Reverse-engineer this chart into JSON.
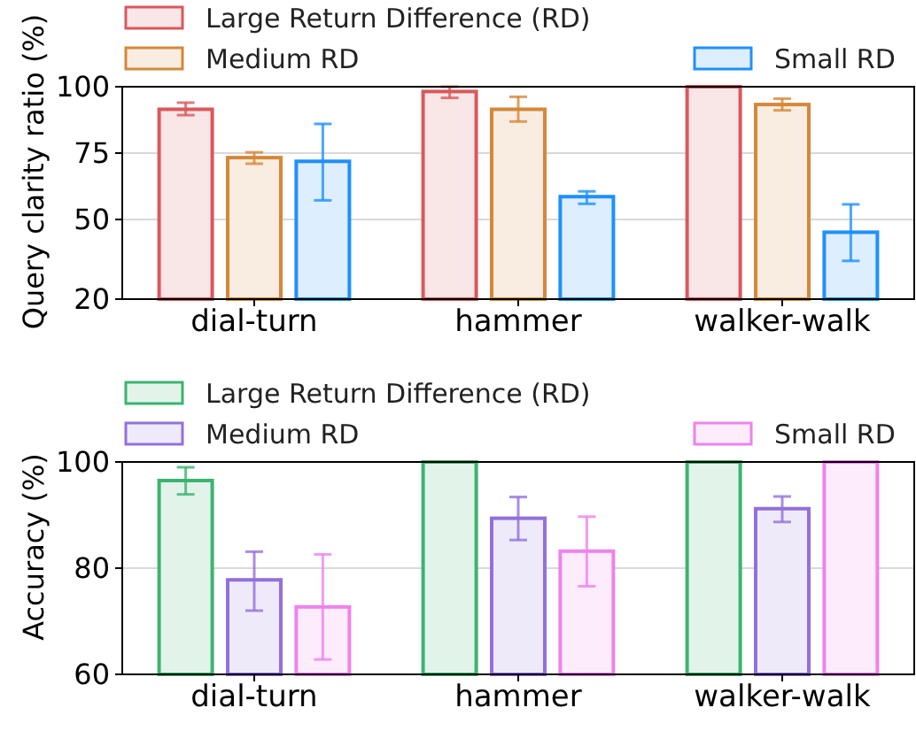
{
  "chart_data": [
    {
      "type": "bar",
      "ylabel": "Query clarity ratio (%)",
      "categories": [
        "dial-turn",
        "hammer",
        "walker-walk"
      ],
      "ylim": [
        20,
        100
      ],
      "yticks": [
        20,
        50,
        75,
        100
      ],
      "grid": "y",
      "legend": "top",
      "series": [
        {
          "name": "Large Return Difference (RD)",
          "color": "#d9595c",
          "values": [
            91.5,
            98.2,
            100
          ],
          "errors": [
            [
              89.3,
              94
            ],
            [
              95.8,
              100
            ],
            null
          ]
        },
        {
          "name": "Medium RD",
          "color": "#d4883a",
          "values": [
            73.3,
            91.5,
            93.3
          ],
          "errors": [
            [
              71,
              75.3
            ],
            [
              86.9,
              96.2
            ],
            [
              91.1,
              95.5
            ]
          ]
        },
        {
          "name": "Small RD",
          "color": "#1e90ff",
          "values": [
            71.9,
            58.6,
            45.2
          ],
          "errors": [
            [
              57.2,
              86
            ],
            [
              55.9,
              60.6
            ],
            [
              34.4,
              55.7
            ]
          ]
        }
      ]
    },
    {
      "type": "bar",
      "ylabel": "Accuracy (%)",
      "categories": [
        "dial-turn",
        "hammer",
        "walker-walk"
      ],
      "ylim": [
        60,
        100
      ],
      "yticks": [
        60,
        80,
        100
      ],
      "grid": "y",
      "legend": "top",
      "series": [
        {
          "name": "Large Return Difference (RD)",
          "color": "#3cb371",
          "values": [
            96.5,
            100,
            100
          ],
          "errors": [
            [
              93.9,
              99
            ],
            null,
            null
          ]
        },
        {
          "name": "Medium RD",
          "color": "#9370db",
          "values": [
            77.8,
            89.4,
            91.2
          ],
          "errors": [
            [
              72,
              83.1
            ],
            [
              85.3,
              93.4
            ],
            [
              88.7,
              93.5
            ]
          ]
        },
        {
          "name": "Small RD",
          "color": "#ee82ee",
          "values": [
            72.7,
            83.2,
            100
          ],
          "errors": [
            [
              62.8,
              82.6
            ],
            [
              76.6,
              89.7
            ],
            null
          ]
        }
      ]
    }
  ]
}
